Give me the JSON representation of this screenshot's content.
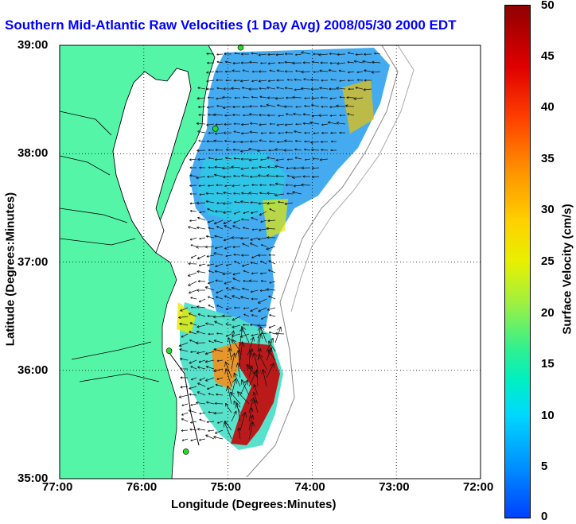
{
  "title": "Southern Mid-Atlantic Raw Velocities (1 Day Avg) 2008/05/30 2000 EDT",
  "xlabel": "Longitude (Degrees:Minutes)",
  "ylabel": "Latitude (Degrees:Minutes)",
  "colorbar_label": "Surface Velocity (cm/s)",
  "x_ticks": [
    "77:00",
    "76:00",
    "75:00",
    "74:00",
    "73:00",
    "72:00"
  ],
  "y_ticks": [
    "39:00",
    "38:00",
    "37:00",
    "36:00",
    "35:00"
  ],
  "colorbar_ticks": [
    "50",
    "45",
    "40",
    "35",
    "30",
    "25",
    "20",
    "15",
    "10",
    "5",
    "0"
  ],
  "colors": {
    "land": "#55f5a8",
    "water": "#ffffff",
    "title": "#0000ff",
    "station": "#22dd22",
    "grid": "#000000"
  },
  "map": {
    "lon_range": [
      -77,
      -72
    ],
    "lat_range": [
      35,
      39
    ],
    "grid": true,
    "stations": [
      {
        "lon": -74.85,
        "lat": 38.98
      },
      {
        "lon": -75.15,
        "lat": 38.23
      },
      {
        "lon": -75.7,
        "lat": 36.18
      },
      {
        "lon": -75.5,
        "lat": 35.25
      }
    ]
  },
  "colorbar_range": [
    0,
    50
  ]
}
